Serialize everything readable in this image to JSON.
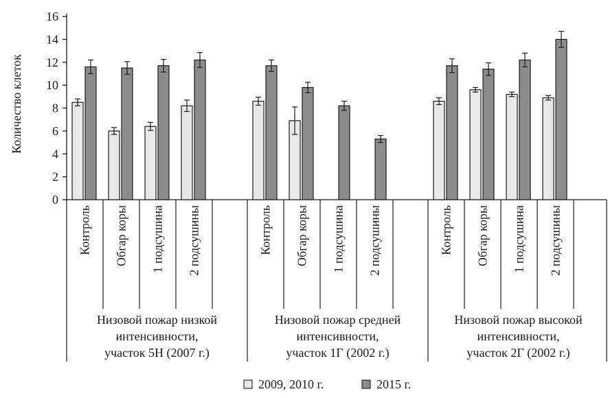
{
  "chart_data": {
    "type": "bar",
    "ylabel": "Количество клеток",
    "ylim": [
      0,
      16
    ],
    "yticks": [
      0,
      2,
      4,
      6,
      8,
      10,
      12,
      14,
      16
    ],
    "grid": false,
    "legend_position": "bottom-center",
    "colors": {
      "2009, 2010 г.": "#e8e8e8",
      "2015 г.": "#8c8c8c",
      "outline": "#1a1a1a"
    },
    "groups": [
      {
        "label_lines": [
          "Низовой пожар низкой",
          "интенсивности,",
          "участок 5Н (2007 г.)"
        ],
        "categories": [
          "Контроль",
          "Обгар коры",
          "1 подсушина",
          "2 подсушины"
        ],
        "series": [
          {
            "name": "2009, 2010 г.",
            "values": [
              8.5,
              6.0,
              6.4,
              8.2
            ],
            "errors": [
              0.3,
              0.3,
              0.35,
              0.5
            ]
          },
          {
            "name": "2015 г.",
            "values": [
              11.6,
              11.5,
              11.7,
              12.2
            ],
            "errors": [
              0.6,
              0.55,
              0.55,
              0.65
            ]
          }
        ]
      },
      {
        "label_lines": [
          "Низовой пожар средней",
          "интенсивности,",
          "участок 1Г (2002 г.)"
        ],
        "categories": [
          "Контроль",
          "Обгар коры",
          "1 подсушина",
          "2 подсушины"
        ],
        "series": [
          {
            "name": "2009, 2010 г.",
            "values": [
              8.6,
              6.9,
              null,
              null
            ],
            "errors": [
              0.35,
              1.2,
              null,
              null
            ]
          },
          {
            "name": "2015 г.",
            "values": [
              11.7,
              9.8,
              8.2,
              5.3
            ],
            "errors": [
              0.5,
              0.45,
              0.4,
              0.3
            ]
          }
        ]
      },
      {
        "label_lines": [
          "Низовой пожар высокой",
          "интенсивности,",
          "участок 2Г (2002 г.)"
        ],
        "categories": [
          "Контроль",
          "Обгар коры",
          "1 подсушина",
          "2 подсушины"
        ],
        "series": [
          {
            "name": "2009, 2010 г.",
            "values": [
              8.6,
              9.6,
              9.2,
              8.9
            ],
            "errors": [
              0.3,
              0.2,
              0.2,
              0.2
            ]
          },
          {
            "name": "2015 г.",
            "values": [
              11.7,
              11.4,
              12.2,
              14.0
            ],
            "errors": [
              0.6,
              0.55,
              0.6,
              0.7
            ]
          }
        ]
      }
    ]
  }
}
